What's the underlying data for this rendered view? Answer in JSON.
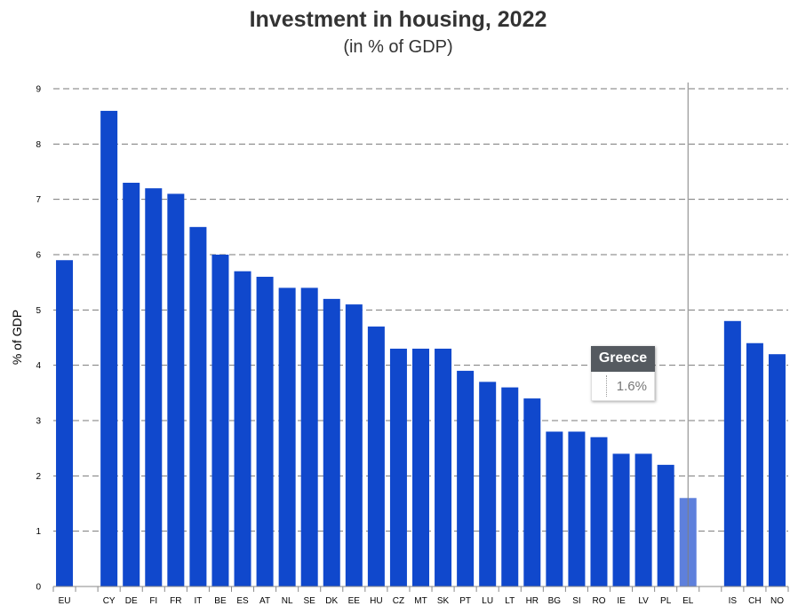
{
  "chart_data": {
    "type": "bar",
    "title": "Investment in housing, 2022",
    "subtitle": "(in % of GDP)",
    "ylabel": "% of GDP",
    "xlabel": "",
    "ylim": [
      0,
      9
    ],
    "yticks": [
      "0",
      "1",
      "2",
      "3",
      "4",
      "5",
      "6",
      "7",
      "8",
      "9"
    ],
    "grid": true,
    "categories": [
      "EU",
      "",
      "CY",
      "DE",
      "FI",
      "FR",
      "IT",
      "BE",
      "ES",
      "AT",
      "NL",
      "SE",
      "DK",
      "EE",
      "HU",
      "CZ",
      "MT",
      "SK",
      "PT",
      "LU",
      "LT",
      "HR",
      "BG",
      "SI",
      "RO",
      "IE",
      "LV",
      "PL",
      "EL",
      "",
      "IS",
      "CH",
      "NO"
    ],
    "values": [
      5.9,
      null,
      8.6,
      7.3,
      7.2,
      7.1,
      6.5,
      6.0,
      5.7,
      5.6,
      5.4,
      5.4,
      5.2,
      5.1,
      4.7,
      4.3,
      4.3,
      4.3,
      3.9,
      3.7,
      3.6,
      3.4,
      2.8,
      2.8,
      2.7,
      2.4,
      2.4,
      2.2,
      1.6,
      null,
      4.8,
      4.4,
      4.2
    ],
    "highlighted": "EL",
    "colors": {
      "bar": "#1048cc",
      "bar_highlight": "#5e80dc"
    }
  },
  "tooltip": {
    "country": "Greece",
    "value": "1.6%"
  }
}
